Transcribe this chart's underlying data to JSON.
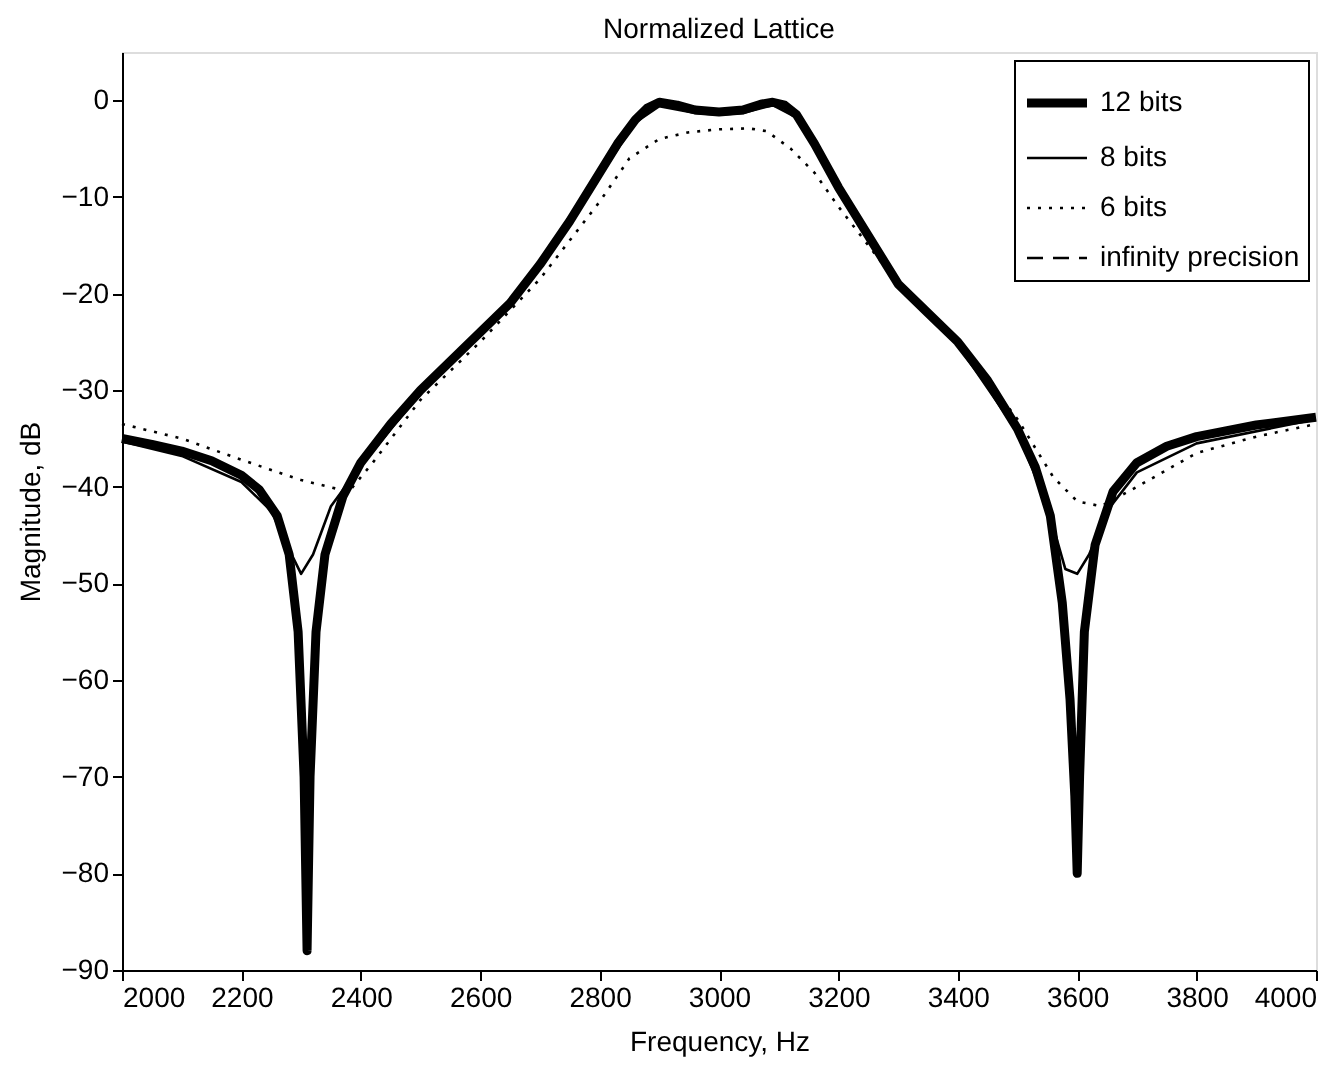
{
  "chart_data": {
    "type": "line",
    "title": "Normalized Lattice",
    "xlabel": "Frequency, Hz",
    "ylabel": "Magnitude, dB",
    "xlim": [
      2000,
      4000
    ],
    "xticks": [
      2000,
      2200,
      2400,
      2600,
      2800,
      3000,
      3200,
      3400,
      3600,
      3800,
      4000
    ],
    "ylim": [
      -90,
      5
    ],
    "yticks": [
      -90,
      -80,
      -70,
      -60,
      -50,
      -40,
      -30,
      -20,
      -10,
      0
    ],
    "grid": false,
    "legend": "top right",
    "marker": "none",
    "series": [
      {
        "name": "12 bits",
        "color": "#000000",
        "line_style": "solid",
        "x": [
          2000,
          2050,
          2100,
          2150,
          2200,
          2230,
          2260,
          2280,
          2295,
          2305,
          2310,
          2315,
          2325,
          2340,
          2370,
          2400,
          2450,
          2500,
          2550,
          2600,
          2650,
          2700,
          2750,
          2800,
          2830,
          2860,
          2880,
          2900,
          2930,
          2960,
          3000,
          3040,
          3070,
          3090,
          3110,
          3130,
          3160,
          3200,
          3250,
          3300,
          3350,
          3400,
          3450,
          3500,
          3530,
          3555,
          3575,
          3588,
          3596,
          3600,
          3604,
          3612,
          3630,
          3660,
          3700,
          3750,
          3800,
          3900,
          4000
        ],
        "values": [
          -35,
          -35.6,
          -36.3,
          -37.3,
          -38.8,
          -40.3,
          -43,
          -47,
          -55,
          -70,
          -88,
          -70,
          -55,
          -47,
          -41,
          -37.5,
          -33.5,
          -30,
          -27,
          -24,
          -21,
          -17,
          -12.5,
          -7.5,
          -4.5,
          -2,
          -0.8,
          -0.2,
          -0.5,
          -1,
          -1.2,
          -1,
          -0.4,
          -0.2,
          -0.5,
          -1.5,
          -4.5,
          -9,
          -14,
          -19,
          -22,
          -25,
          -29,
          -34,
          -38,
          -43,
          -52,
          -62,
          -72,
          -80,
          -70,
          -55,
          -46,
          -40.5,
          -37.5,
          -35.8,
          -34.8,
          -33.6,
          -32.8
        ]
      },
      {
        "name": "8 bits",
        "color": "#000000",
        "line_style": "solid",
        "x": [
          2000,
          2100,
          2200,
          2250,
          2280,
          2300,
          2320,
          2350,
          2400,
          2500,
          2600,
          2700,
          2800,
          2860,
          2900,
          2960,
          3000,
          3040,
          3090,
          3130,
          3200,
          3300,
          3400,
          3500,
          3550,
          3580,
          3600,
          3620,
          3650,
          3700,
          3800,
          4000
        ],
        "values": [
          -35.3,
          -36.8,
          -39.5,
          -42.5,
          -46.5,
          -49,
          -47,
          -42,
          -37.8,
          -30.3,
          -24.3,
          -17.3,
          -7.8,
          -2.3,
          -0.6,
          -1.3,
          -1.5,
          -1.3,
          -0.5,
          -1.8,
          -9.3,
          -19.3,
          -25.3,
          -34.3,
          -42,
          -48.5,
          -49,
          -47,
          -42.5,
          -38.5,
          -35.5,
          -33
        ]
      },
      {
        "name": "6 bits",
        "color": "#000000",
        "line_style": "dotted",
        "x": [
          2000,
          2100,
          2200,
          2300,
          2380,
          2420,
          2500,
          2600,
          2700,
          2800,
          2850,
          2900,
          2950,
          3000,
          3050,
          3080,
          3120,
          3160,
          3200,
          3300,
          3400,
          3500,
          3560,
          3600,
          3640,
          3700,
          3800,
          3900,
          4000
        ],
        "values": [
          -33.5,
          -35,
          -37.2,
          -39.3,
          -40.5,
          -37.5,
          -31,
          -25,
          -18.5,
          -10.5,
          -6,
          -4,
          -3.3,
          -3,
          -2.9,
          -3.2,
          -5,
          -7.5,
          -11,
          -19,
          -25,
          -33,
          -39,
          -41.5,
          -42,
          -40,
          -36.5,
          -34.8,
          -33.5
        ]
      },
      {
        "name": "infinity precision",
        "color": "#000000",
        "line_style": "dashed"
      }
    ]
  }
}
